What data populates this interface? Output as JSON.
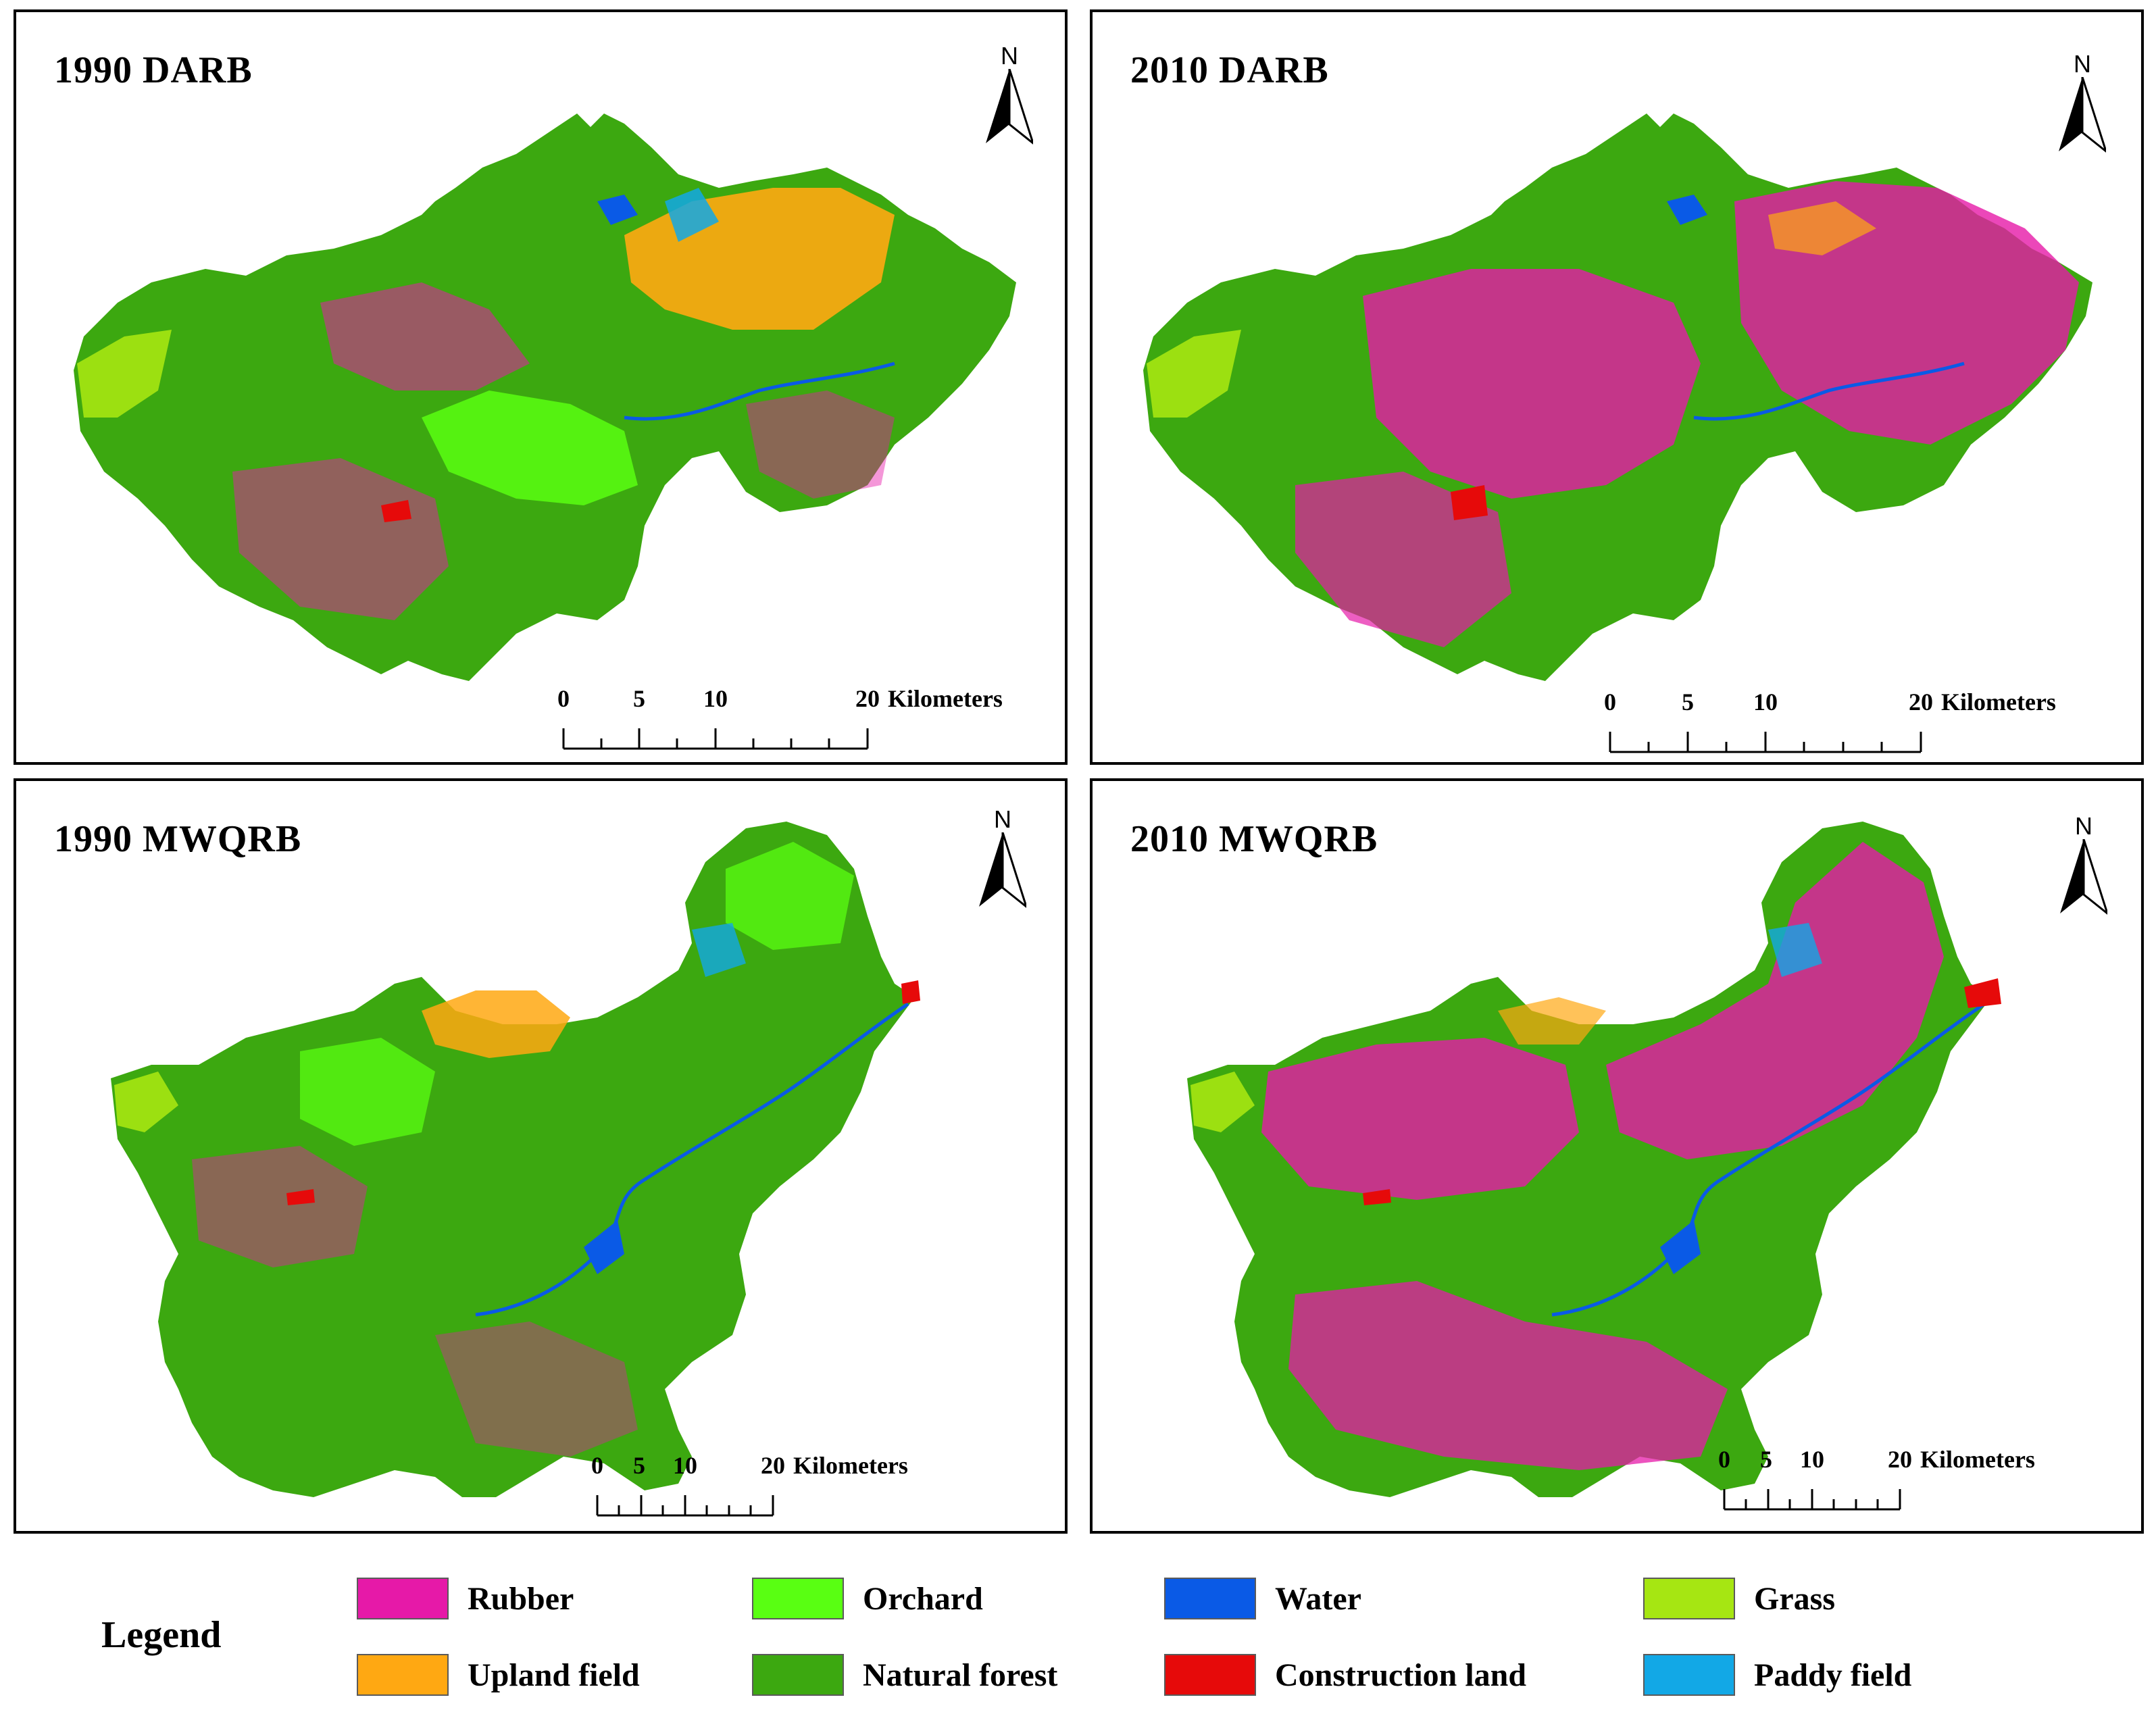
{
  "panels": [
    {
      "title": "1990 DARB",
      "north": "N",
      "scale": {
        "ticks": [
          "0",
          "5",
          "10",
          "20"
        ],
        "units": "Kilometers"
      }
    },
    {
      "title": "2010 DARB",
      "north": "N",
      "scale": {
        "ticks": [
          "0",
          "5",
          "10",
          "20"
        ],
        "units": "Kilometers"
      }
    },
    {
      "title": "1990 MWQRB",
      "north": "N",
      "scale": {
        "ticks": [
          "0",
          "5",
          "10",
          "20"
        ],
        "units": "Kilometers"
      }
    },
    {
      "title": "2010 MWQRB",
      "north": "N",
      "scale": {
        "ticks": [
          "0",
          "5",
          "10",
          "20"
        ],
        "units": "Kilometers"
      }
    }
  ],
  "legend": {
    "title": "Legend",
    "items": [
      {
        "label": "Rubber",
        "color": "#e619a8"
      },
      {
        "label": "Orchard",
        "color": "#59ff12"
      },
      {
        "label": "Water",
        "color": "#0a5ae6"
      },
      {
        "label": "Grass",
        "color": "#a6e612"
      },
      {
        "label": "Upland field",
        "color": "#ffa812"
      },
      {
        "label": "Natural forest",
        "color": "#3ca810"
      },
      {
        "label": "Construction land",
        "color": "#e60a0a"
      },
      {
        "label": "Paddy field",
        "color": "#12a8e6"
      }
    ]
  }
}
